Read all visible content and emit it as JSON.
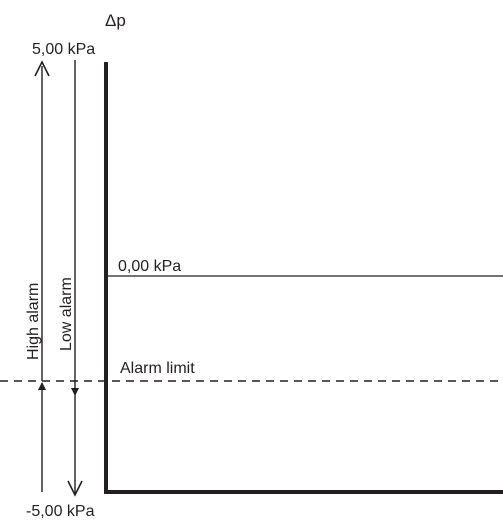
{
  "axis": {
    "symbol": "Δp",
    "top_value": "5,00 kPa",
    "bottom_value": "-5,00 kPa"
  },
  "lines": {
    "zero_label": "0,00 kPa",
    "alarm_limit_label": "Alarm limit"
  },
  "arrows": {
    "high_alarm_label": "High alarm",
    "low_alarm_label": "Low alarm"
  },
  "colors": {
    "ink": "#231f20",
    "background": "#ffffff"
  }
}
